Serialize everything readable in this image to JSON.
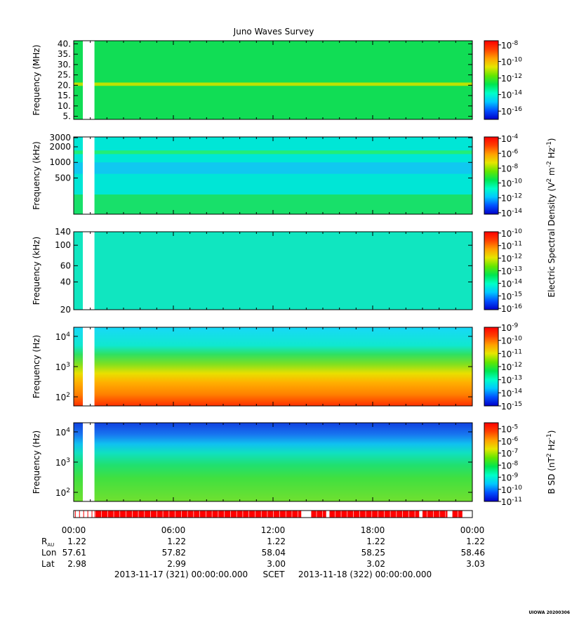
{
  "title": "Juno Waves Survey",
  "footer_stamp": "UIOWA 20200306",
  "chart_data": [
    {
      "type": "heatmap",
      "ylabel": "Frequency (MHz)",
      "yticks": [
        {
          "label": "40.",
          "value": 40
        },
        {
          "label": "35.",
          "value": 35
        },
        {
          "label": "30.",
          "value": 30
        },
        {
          "label": "25.",
          "value": 25
        },
        {
          "label": "20.",
          "value": 20
        },
        {
          "label": "15.",
          "value": 15
        },
        {
          "label": "10.",
          "value": 10
        },
        {
          "label": "5.",
          "value": 5
        }
      ],
      "ylim": [
        3.5,
        41.5
      ],
      "yscale": "linear",
      "colorbar": {
        "labels": [
          {
            "base": "10",
            "exp": "-8",
            "value": -8
          },
          {
            "base": "10",
            "exp": "-10",
            "value": -10
          },
          {
            "base": "10",
            "exp": "-12",
            "value": -12
          },
          {
            "base": "10",
            "exp": "-14",
            "value": -14
          },
          {
            "base": "10",
            "exp": "-16",
            "value": -16
          }
        ],
        "range": [
          -17,
          -7.5
        ]
      },
      "colors": {
        "base": "#11dd55",
        "bands": [
          {
            "from": 19.7,
            "to": 21.3,
            "color": "#bbe300"
          }
        ]
      }
    },
    {
      "type": "heatmap",
      "ylabel": "Frequency (kHz)",
      "yticks": [
        {
          "label": "3000",
          "value": 3000
        },
        {
          "label": "2000",
          "value": 2000
        },
        {
          "label": "1000",
          "value": 1000
        },
        {
          "label": "500",
          "value": 500
        }
      ],
      "ylim": [
        100,
        3100
      ],
      "yscale": "log",
      "colorbar": {
        "labels": [
          {
            "base": "10",
            "exp": "-4",
            "value": -4
          },
          {
            "base": "10",
            "exp": "-6",
            "value": -6
          },
          {
            "base": "10",
            "exp": "-8",
            "value": -8
          },
          {
            "base": "10",
            "exp": "-10",
            "value": -10
          },
          {
            "base": "10",
            "exp": "-12",
            "value": -12
          },
          {
            "base": "10",
            "exp": "-14",
            "value": -14
          }
        ],
        "range": [
          -14.2,
          -3.8
        ]
      },
      "colors": {
        "base": "#00e6d6",
        "bands": [
          {
            "from": 1450,
            "to": 1700,
            "color": "#22ee77"
          },
          {
            "from": 600,
            "to": 1000,
            "color": "#10c8f0"
          },
          {
            "from": 100,
            "to": 240,
            "color": "#18e06a"
          }
        ]
      }
    },
    {
      "type": "heatmap",
      "ylabel": "Frequency (kHz)",
      "yticks": [
        {
          "label": "140",
          "value": 140
        },
        {
          "label": "100",
          "value": 100
        },
        {
          "label": "60",
          "value": 60
        },
        {
          "label": "40",
          "value": 40
        },
        {
          "label": "20",
          "value": 20
        }
      ],
      "ylim": [
        20,
        140
      ],
      "yscale": "log",
      "colorbar": {
        "labels": [
          {
            "base": "10",
            "exp": "-10",
            "value": -10
          },
          {
            "base": "10",
            "exp": "-11",
            "value": -11
          },
          {
            "base": "10",
            "exp": "-12",
            "value": -12
          },
          {
            "base": "10",
            "exp": "-13",
            "value": -13
          },
          {
            "base": "10",
            "exp": "-14",
            "value": -14
          },
          {
            "base": "10",
            "exp": "-15",
            "value": -15
          },
          {
            "base": "10",
            "exp": "-16",
            "value": -16
          }
        ],
        "range": [
          -16.1,
          -9.9
        ]
      },
      "colors": {
        "base": "#10e6c0",
        "bands": []
      }
    },
    {
      "type": "heatmap",
      "ylabel": "Frequency (Hz)",
      "yticks": [
        {
          "label": "10",
          "exp": "4",
          "value": 10000
        },
        {
          "label": "10",
          "exp": "3",
          "value": 1000
        },
        {
          "label": "10",
          "exp": "2",
          "value": 100
        }
      ],
      "ylim": [
        50,
        20000
      ],
      "yscale": "log",
      "colorbar": {
        "labels": [
          {
            "base": "10",
            "exp": "-9",
            "value": -9
          },
          {
            "base": "10",
            "exp": "-10",
            "value": -10
          },
          {
            "base": "10",
            "exp": "-11",
            "value": -11
          },
          {
            "base": "10",
            "exp": "-12",
            "value": -12
          },
          {
            "base": "10",
            "exp": "-13",
            "value": -13
          },
          {
            "base": "10",
            "exp": "-14",
            "value": -14
          },
          {
            "base": "10",
            "exp": "-15",
            "value": -15
          }
        ],
        "range": [
          -15,
          -9
        ]
      },
      "colors": {
        "gradient": [
          {
            "value": 20000,
            "color": "#18d8f8"
          },
          {
            "value": 5000,
            "color": "#10e8d0"
          },
          {
            "value": 2500,
            "color": "#30e060"
          },
          {
            "value": 1200,
            "color": "#80e020"
          },
          {
            "value": 600,
            "color": "#e8e000"
          },
          {
            "value": 300,
            "color": "#ffb000"
          },
          {
            "value": 120,
            "color": "#ff8000"
          },
          {
            "value": 50,
            "color": "#ff3000"
          }
        ]
      }
    },
    {
      "type": "heatmap",
      "ylabel": "Frequency (Hz)",
      "yticks": [
        {
          "label": "10",
          "exp": "4",
          "value": 10000
        },
        {
          "label": "10",
          "exp": "3",
          "value": 1000
        },
        {
          "label": "10",
          "exp": "2",
          "value": 100
        }
      ],
      "ylim": [
        50,
        20000
      ],
      "yscale": "log",
      "colorbar": {
        "labels": [
          {
            "base": "10",
            "exp": "-5",
            "value": -5
          },
          {
            "base": "10",
            "exp": "-6",
            "value": -6
          },
          {
            "base": "10",
            "exp": "-7",
            "value": -7
          },
          {
            "base": "10",
            "exp": "-8",
            "value": -8
          },
          {
            "base": "10",
            "exp": "-9",
            "value": -9
          },
          {
            "base": "10",
            "exp": "-10",
            "value": -10
          },
          {
            "base": "10",
            "exp": "-11",
            "value": -11
          }
        ],
        "range": [
          -11,
          -4.5
        ]
      },
      "colors": {
        "gradient": [
          {
            "value": 20000,
            "color": "#1040e0"
          },
          {
            "value": 8000,
            "color": "#1878f0"
          },
          {
            "value": 4000,
            "color": "#10c0f0"
          },
          {
            "value": 2000,
            "color": "#10e0c0"
          },
          {
            "value": 800,
            "color": "#20e070"
          },
          {
            "value": 300,
            "color": "#40e040"
          },
          {
            "value": 50,
            "color": "#70e030"
          }
        ]
      }
    }
  ],
  "colorbar_titles": {
    "electric": "Electric Spectral Density (V",
    "electric_unit_mid": " m",
    "electric_unit_end": " Hz",
    "electric_close": ")",
    "magnetic": "B SD (nT",
    "magnetic_unit_end": " Hz",
    "magnetic_close": ")",
    "exp_pos2": "2",
    "exp_neg2": "-2",
    "exp_neg1": "-1"
  },
  "time_axis": {
    "ticks": [
      "00:00",
      "06:00",
      "12:00",
      "18:00",
      "00:00"
    ],
    "range_hours": [
      0,
      24
    ],
    "data_gap_hours": [
      0.55,
      1.25
    ]
  },
  "ephemeris": [
    {
      "label": "R",
      "sub": "AU",
      "values": [
        "1.22",
        "1.22",
        "1.22",
        "1.22",
        "1.22"
      ]
    },
    {
      "label": "Lon",
      "values": [
        "57.61",
        "57.82",
        "58.04",
        "58.25",
        "58.46"
      ]
    },
    {
      "label": "Lat",
      "values": [
        "2.98",
        "2.99",
        "3.00",
        "3.02",
        "3.03"
      ]
    }
  ],
  "scet_line": {
    "start": "2013-11-17 (321) 00:00:00.000",
    "mid": "SCET",
    "end": "2013-11-18 (322) 00:00:00.000"
  },
  "mode_bar": {
    "color": "#ff0000",
    "gaps_hours": [
      [
        0,
        1.25
      ],
      [
        13.7,
        14.3
      ],
      [
        15.2,
        15.4
      ],
      [
        20.8,
        21.0
      ],
      [
        22.5,
        22.8
      ],
      [
        23.4,
        24
      ]
    ]
  }
}
